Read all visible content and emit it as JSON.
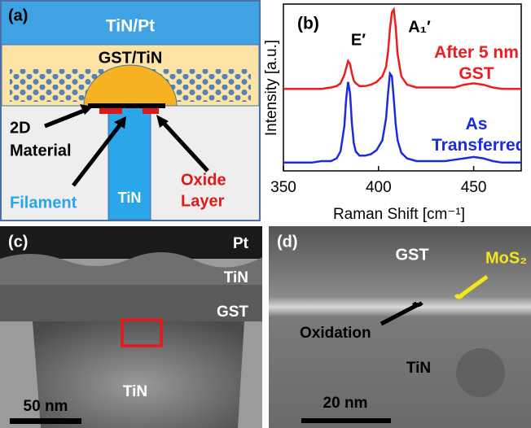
{
  "panel_a": {
    "label": "(a)",
    "top_layer": "TiN/Pt",
    "switching_layer": "GST/TiN",
    "material": [
      "2D",
      "Material"
    ],
    "filament": "Filament",
    "electrode": "TiN",
    "oxide": [
      "Oxide",
      "Layer"
    ]
  },
  "chart_data": {
    "type": "line",
    "label": "(b)",
    "xlabel": "Raman Shift [cm⁻¹]",
    "ylabel": "Intensity [a.u.]",
    "annotations": [
      "E′",
      "A₁′"
    ],
    "xlim": [
      350,
      475
    ],
    "xticks": [
      350,
      400,
      450
    ],
    "ylim": [
      0,
      12
    ],
    "x": [
      350,
      355,
      360,
      365,
      370,
      375,
      378,
      380,
      382,
      383,
      384,
      385,
      386,
      387,
      388,
      390,
      393,
      396,
      399,
      402,
      404,
      405,
      406,
      407,
      408,
      409,
      410,
      412,
      415,
      420,
      425,
      430,
      435,
      440,
      445,
      450,
      455,
      460,
      465,
      470,
      475
    ],
    "series": [
      {
        "name": "After 5 nm GST",
        "color": "#ee1c1c",
        "values": [
          5.9,
          5.9,
          5.9,
          5.9,
          5.9,
          6.0,
          6.1,
          6.3,
          6.9,
          7.4,
          7.9,
          7.7,
          7.0,
          6.5,
          6.3,
          6.1,
          6.1,
          6.2,
          6.4,
          6.8,
          7.5,
          8.6,
          10.2,
          11.4,
          11.6,
          10.4,
          8.4,
          6.8,
          6.2,
          6.0,
          6.0,
          6.0,
          6.0,
          6.0,
          6.2,
          6.3,
          6.2,
          6.0,
          5.9,
          5.9,
          5.9
        ]
      },
      {
        "name": "As Transferred",
        "color": "#1c2bdc",
        "values": [
          0.6,
          0.6,
          0.6,
          0.6,
          0.7,
          0.7,
          0.9,
          1.4,
          3.2,
          5.2,
          6.4,
          5.6,
          3.4,
          2.0,
          1.4,
          1.1,
          1.1,
          1.2,
          1.5,
          2.2,
          3.8,
          5.6,
          7.0,
          6.8,
          5.2,
          3.4,
          2.2,
          1.3,
          0.9,
          0.7,
          0.7,
          0.7,
          0.7,
          0.8,
          0.9,
          1.0,
          0.9,
          0.7,
          0.6,
          0.6,
          0.6
        ]
      }
    ]
  },
  "panel_c": {
    "label": "(c)",
    "layers": [
      "Pt",
      "TiN",
      "GST"
    ],
    "bottom": "TiN",
    "scale_bar": "50 nm"
  },
  "panel_d": {
    "label": "(d)",
    "top": "GST",
    "material": "MoS₂",
    "oxidation": "Oxidation",
    "bottom": "TiN",
    "scale_bar": "20 nm"
  }
}
